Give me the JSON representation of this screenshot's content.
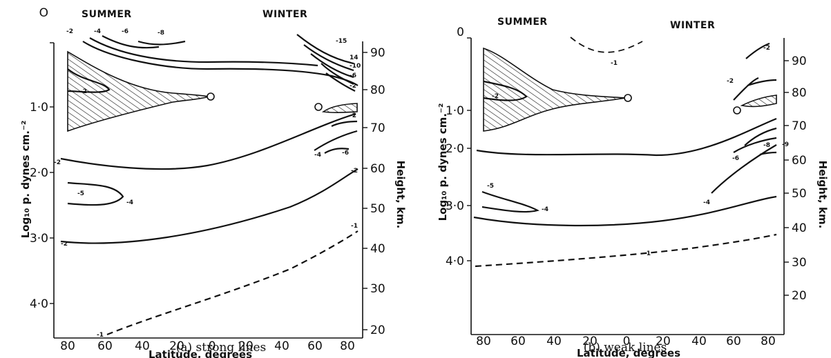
{
  "panels": [
    {
      "caption": "(a) strong lines",
      "season_left": "SUMMER",
      "season_right": "WINTER",
      "xlabel": "Latitude, degrees",
      "ylabel_left": "Log₁₀ p. dynes cm.⁻²",
      "ylabel_right": "Height, km.",
      "x_ticks": [
        "80",
        "60",
        "40",
        "20",
        "0",
        "20",
        "40",
        "60",
        "80"
      ],
      "y_left_ticks": [
        "O",
        "1·0",
        "2·0",
        "3·0",
        "4·0"
      ],
      "y_right_ticks": [
        "90",
        "80",
        "70",
        "60",
        "50",
        "40",
        "30",
        "20"
      ],
      "contour_labels": [
        "-2",
        "-4",
        "-6",
        "-8",
        "-15",
        "14",
        "-10",
        "-6",
        "-2",
        "-2",
        "-2",
        "-4",
        "-6",
        "-2",
        "-5",
        "-4",
        "-2",
        "-2",
        "-1",
        "-1"
      ]
    },
    {
      "caption": "(b) weak lines",
      "season_left": "SUMMER",
      "season_right": "WINTER",
      "xlabel": "Latitude, degrees",
      "ylabel_left": "Log₁₀ p. dynes cm.⁻²",
      "ylabel_right": "Height, km.",
      "x_ticks": [
        "80",
        "60",
        "40",
        "20",
        "0",
        "20",
        "40",
        "60",
        "80"
      ],
      "y_left_ticks": [
        "0",
        "1·0",
        "2·0",
        "3·0",
        "4·0"
      ],
      "y_right_ticks": [
        "90",
        "80",
        "70",
        "60",
        "50",
        "40",
        "30",
        "20"
      ],
      "contour_labels": [
        "-1",
        "-2",
        "-2",
        "-2",
        "-8",
        "-9",
        "-6",
        "-4",
        "-5",
        "-4",
        "-1"
      ]
    }
  ],
  "chart_data": [
    {
      "type": "contour",
      "caption": "(a) strong lines",
      "xlabel": "Latitude, degrees",
      "ylabel": "Log₁₀ p. dynes cm.⁻²",
      "ylabel_right": "Height, km.",
      "x_ticks": [
        "80",
        "60",
        "40",
        "20",
        "0",
        "20",
        "40",
        "60",
        "80"
      ],
      "y_ticks": [
        "O",
        "1·0",
        "2·0",
        "3·0",
        "4·0"
      ],
      "y_right_ticks": [
        "90",
        "80",
        "70",
        "60",
        "50",
        "40",
        "30",
        "20"
      ],
      "hemispheres": [
        "SUMMER",
        "WINTER"
      ],
      "shaded_regions": 2,
      "contour_levels": [
        "-1",
        "-2",
        "-4",
        "-5",
        "-6",
        "-8",
        "-10",
        "14",
        "-15"
      ],
      "dashed_levels": [
        "-1"
      ]
    },
    {
      "type": "contour",
      "caption": "(b) weak lines",
      "xlabel": "Latitude, degrees",
      "ylabel": "Log₁₀ p. dynes cm.⁻²",
      "ylabel_right": "Height, km.",
      "x_ticks": [
        "80",
        "60",
        "40",
        "20",
        "0",
        "20",
        "40",
        "60",
        "80"
      ],
      "y_ticks": [
        "0",
        "1·0",
        "2·0",
        "3·0",
        "4·0"
      ],
      "y_right_ticks": [
        "90",
        "80",
        "70",
        "60",
        "50",
        "40",
        "30",
        "20"
      ],
      "hemispheres": [
        "SUMMER",
        "WINTER"
      ],
      "shaded_regions": 2,
      "contour_levels": [
        "-1",
        "-2",
        "-4",
        "-5",
        "-6",
        "-8",
        "-9"
      ],
      "dashed_levels": [
        "-1"
      ]
    }
  ]
}
